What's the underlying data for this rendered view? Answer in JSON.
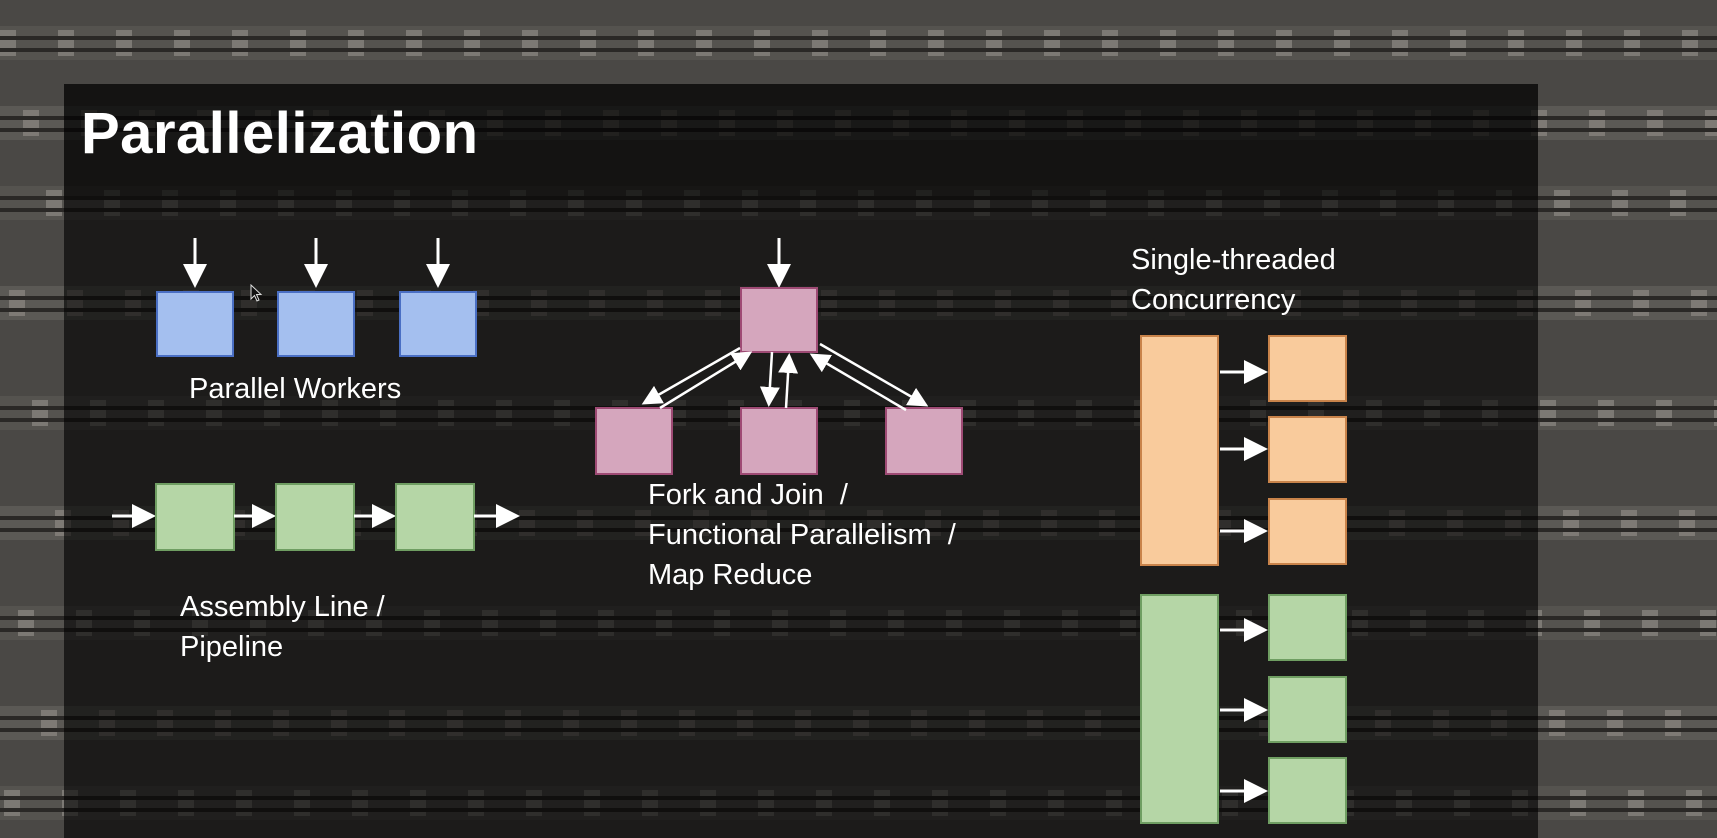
{
  "slide": {
    "title": "Parallelization"
  },
  "diagrams": {
    "parallel_workers": {
      "label": "Parallel Workers",
      "box_color": "#a4bfef",
      "box_border": "#4a6fc4"
    },
    "assembly_line": {
      "label_line1": "Assembly Line /",
      "label_line2": "Pipeline",
      "box_color": "#b5d6a6",
      "box_border": "#6f9e62"
    },
    "fork_join": {
      "label_line1": "Fork and Join  /",
      "label_line2": "Functional Parallelism  /",
      "label_line3": "Map Reduce",
      "box_color": "#d5a6bd",
      "box_border": "#9e4a74"
    },
    "single_threaded": {
      "label_line1": "Single-threaded",
      "label_line2": "Concurrency",
      "orange_color": "#f9cb9c",
      "orange_border": "#c9834a",
      "green_color": "#b5d6a6",
      "green_border": "#6f9e62"
    }
  }
}
